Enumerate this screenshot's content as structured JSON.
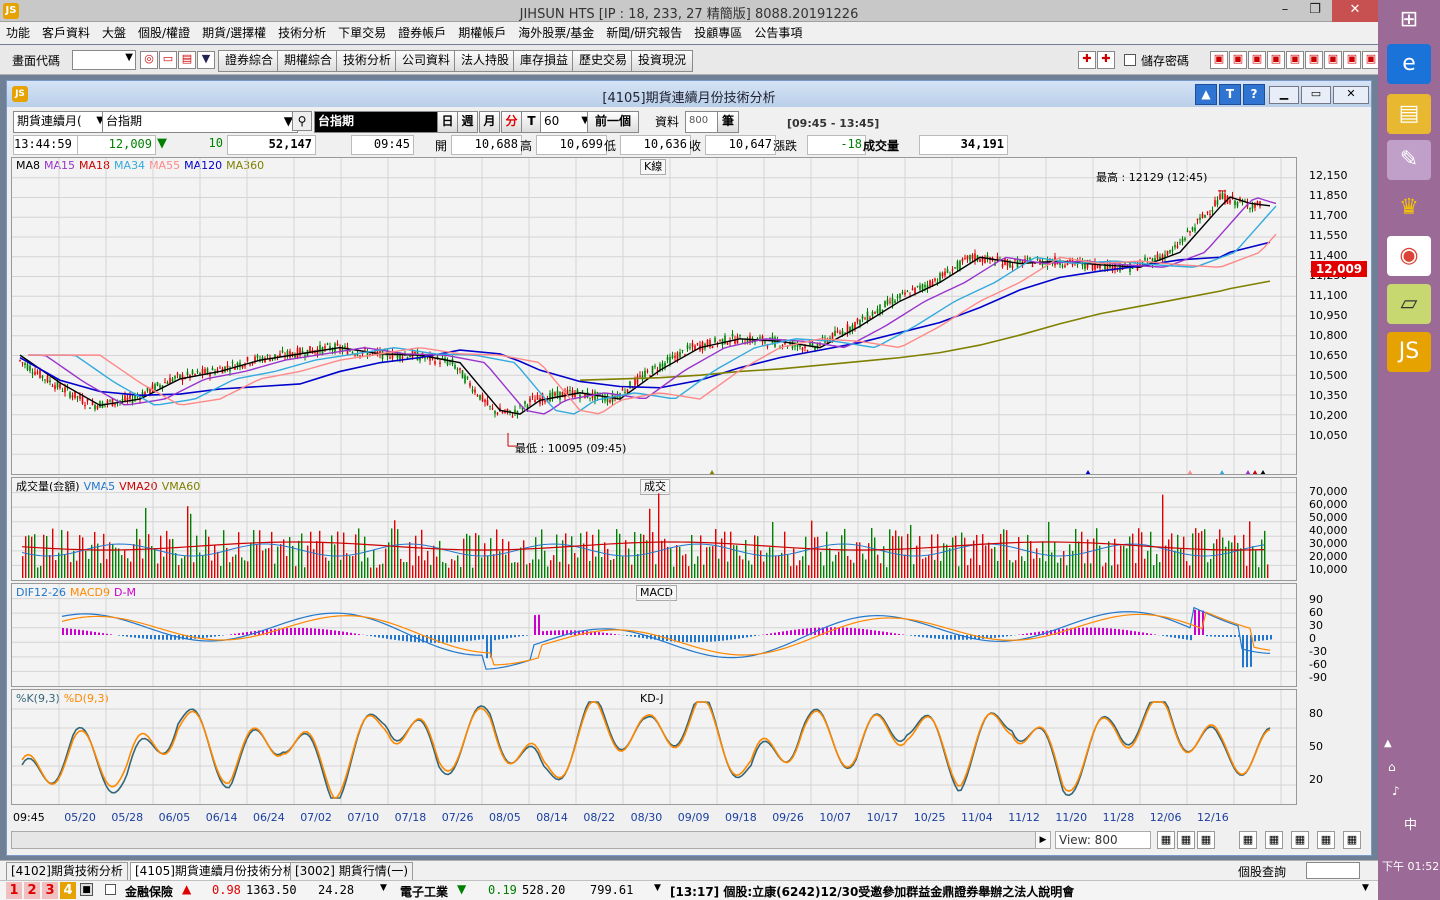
{
  "window": {
    "title": "JIHSUN HTS     [IP : 18, 233, 27 精簡版] 8088.20191226"
  },
  "menu": [
    "功能",
    "客戶資料",
    "大盤",
    "個股/權證",
    "期貨/選擇權",
    "技術分析",
    "下單交易",
    "證券帳戶",
    "期權帳戶",
    "海外股票/基金",
    "新聞/研究報告",
    "投顧專區",
    "公告事項"
  ],
  "toolbar": {
    "code_label": "畫面代碼",
    "buttons": [
      "證券綜合",
      "期權綜合",
      "技術分析",
      "公司資料",
      "法人持股",
      "庫存損益",
      "歷史交易",
      "投資現況"
    ],
    "save_password": "儲存密碼"
  },
  "chart_window": {
    "title": "[4105]期貨連續月份技術分析",
    "help_buttons": [
      "▲",
      "T",
      "?"
    ],
    "contract_select": "期貨連續月(",
    "symbol_name": "台指期",
    "symbol_label": "台指期",
    "periods": [
      "日",
      "週",
      "月",
      "分",
      "T"
    ],
    "interval": "60",
    "prev_button": "前一個",
    "data_label": "資料",
    "data_count": "800",
    "count_unit": "筆",
    "session": "[09:45 - 13:45]"
  },
  "quote": {
    "time": "13:44:59",
    "last": "12,009",
    "arrow": "▼",
    "change": "10",
    "volume_total": "52,147",
    "bar_time": "09:45",
    "open_label": "開",
    "open": "10,688",
    "high_label": "高",
    "high": "10,699",
    "low_label": "低",
    "low": "10,636",
    "close_label": "收",
    "close": "10,647",
    "chg_label": "漲跌",
    "chg": "-18",
    "vol_label": "成交量",
    "vol": "34,191"
  },
  "colors": {
    "up": "#e00000",
    "down": "#008000",
    "ma8": "#000000",
    "ma15": "#9933cc",
    "ma18": "#cc0000",
    "ma34": "#33aadd",
    "ma55": "#ff8888",
    "ma120": "#0000cc",
    "ma360": "#808000",
    "dif": "#2277cc",
    "macd": "#ff8800",
    "k": "#336677",
    "d": "#ff8800"
  },
  "price_panel": {
    "legend": [
      {
        "name": "MA8",
        "color": "#000000"
      },
      {
        "name": "MA15",
        "color": "#9933cc"
      },
      {
        "name": "MA18",
        "color": "#cc0000"
      },
      {
        "name": "MA34",
        "color": "#33aadd"
      },
      {
        "name": "MA55",
        "color": "#ff8888"
      },
      {
        "name": "MA120",
        "color": "#0000cc"
      },
      {
        "name": "MA360",
        "color": "#808000"
      }
    ],
    "title": "K線",
    "high_note": "最高 : 12129 (12:45)",
    "low_note": "最低 : 10095 (09:45)",
    "last_tag": "12,009",
    "yticks": [
      "12,150",
      "11,850",
      "11,700",
      "11,550",
      "11,400",
      "11,250",
      "11,100",
      "10,950",
      "10,800",
      "10,650",
      "10,500",
      "10,350",
      "10,200",
      "10,050"
    ]
  },
  "volume_panel": {
    "legend": [
      {
        "name": "成交量(金額)",
        "color": "#000000"
      },
      {
        "name": "VMA5",
        "color": "#2277cc"
      },
      {
        "name": "VMA20",
        "color": "#cc0000"
      },
      {
        "name": "VMA60",
        "color": "#808000"
      }
    ],
    "title": "成交",
    "yticks": [
      "70,000",
      "60,000",
      "50,000",
      "40,000",
      "30,000",
      "20,000",
      "10,000"
    ]
  },
  "macd_panel": {
    "legend": [
      {
        "name": "DIF12-26",
        "color": "#2277cc"
      },
      {
        "name": "MACD9",
        "color": "#ff8800"
      },
      {
        "name": "D-M",
        "color": "#cc00cc"
      }
    ],
    "title": "MACD",
    "yticks": [
      "90",
      "60",
      "30",
      "0",
      "-30",
      "-60",
      "-90"
    ]
  },
  "kd_panel": {
    "legend": [
      {
        "name": "%K(9,3)",
        "color": "#336677"
      },
      {
        "name": "%D(9,3)",
        "color": "#ff8800"
      }
    ],
    "title": "KD-J",
    "yticks": [
      "80",
      "50",
      "20"
    ]
  },
  "xaxis": [
    "09:45",
    "05/20",
    "05/28",
    "06/05",
    "06/14",
    "06/24",
    "07/02",
    "07/10",
    "07/18",
    "07/26",
    "08/05",
    "08/14",
    "08/22",
    "08/30",
    "09/09",
    "09/18",
    "09/26",
    "10/07",
    "10/17",
    "10/25",
    "11/04",
    "11/12",
    "11/20",
    "11/28",
    "12/06",
    "12/16"
  ],
  "view_label": "View: 800",
  "tabs": [
    "[4102]期貨技術分析",
    "[4105]期貨連續月份技術分析",
    "[3002] 期貨行情(一)"
  ],
  "tab_right_label": "個股查詢",
  "status": {
    "nums": [
      "1",
      "2",
      "3",
      "4"
    ],
    "item1_name": "金融保險",
    "item1_arrow": "▲",
    "item1_chg": "0.98",
    "item1_val": "1363.50",
    "item1_vol": "24.28",
    "item2_name": "電子工業",
    "item2_arrow": "▼",
    "item2_chg": "0.19",
    "item2_val": "528.20",
    "item2_vol": "799.61",
    "news": "[13:17] 個股:立康(6242)12/30受邀參加群益金鼎證券舉辦之法人說明會"
  },
  "sidebar": {
    "clock": "下午 01:52",
    "ime": "中"
  },
  "chart_data": [
    {
      "type": "line",
      "title": "K線",
      "x": [
        0,
        40,
        80,
        120,
        160,
        200,
        240,
        280,
        320,
        360,
        400,
        440,
        480,
        500,
        520,
        560,
        600,
        640,
        680,
        720,
        760,
        800,
        840,
        880,
        920,
        960,
        1000,
        1040,
        1080,
        1120,
        1160,
        1200,
        1210,
        1230,
        1250
      ],
      "series": [
        {
          "name": "MA8",
          "values": [
            10820,
            10600,
            10420,
            10470,
            10630,
            10690,
            10780,
            10830,
            10880,
            10830,
            10820,
            10760,
            10380,
            10350,
            10460,
            10520,
            10470,
            10700,
            10880,
            10950,
            10930,
            10880,
            11050,
            11250,
            11400,
            11600,
            11550,
            11570,
            11540,
            11520,
            11640,
            12000,
            12080,
            12030,
            12010
          ]
        },
        {
          "name": "MA120",
          "values": [
            10800,
            10620,
            10530,
            10500,
            10510,
            10550,
            10570,
            10590,
            10690,
            10760,
            10800,
            10860,
            10830,
            10770,
            10700,
            10610,
            10570,
            10560,
            10620,
            10720,
            10800,
            10860,
            10920,
            11000,
            11080,
            11200,
            11340,
            11440,
            11490,
            11530,
            11580,
            11600,
            11640,
            11680,
            11720
          ]
        },
        {
          "name": "MA360",
          "values": [
            null,
            null,
            null,
            null,
            null,
            null,
            null,
            null,
            null,
            null,
            null,
            null,
            null,
            null,
            null,
            10620,
            10630,
            10640,
            10660,
            10690,
            10710,
            10740,
            10770,
            10800,
            10840,
            10900,
            10980,
            11070,
            11150,
            11210,
            11270,
            11330,
            11350,
            11380,
            11410
          ]
        }
      ],
      "annotations": [
        "最高 : 12129 (12:45)",
        "最低 : 10095 (09:45)"
      ],
      "ylim": [
        10000,
        12200
      ]
    },
    {
      "type": "line",
      "title": "KD-J",
      "series": [
        {
          "name": "%K(9,3)",
          "values": [
            15,
            55,
            20,
            85,
            30,
            70,
            15,
            90,
            40,
            80,
            20,
            85,
            60,
            90,
            25,
            75,
            50,
            85,
            30,
            90,
            20,
            75,
            85,
            45,
            50
          ]
        },
        {
          "name": "%D(9,3)",
          "values": [
            20,
            50,
            30,
            80,
            35,
            68,
            22,
            85,
            45,
            76,
            25,
            80,
            62,
            85,
            30,
            72,
            52,
            80,
            35,
            86,
            25,
            72,
            82,
            48,
            48
          ]
        }
      ],
      "ylim": [
        0,
        100
      ]
    }
  ]
}
